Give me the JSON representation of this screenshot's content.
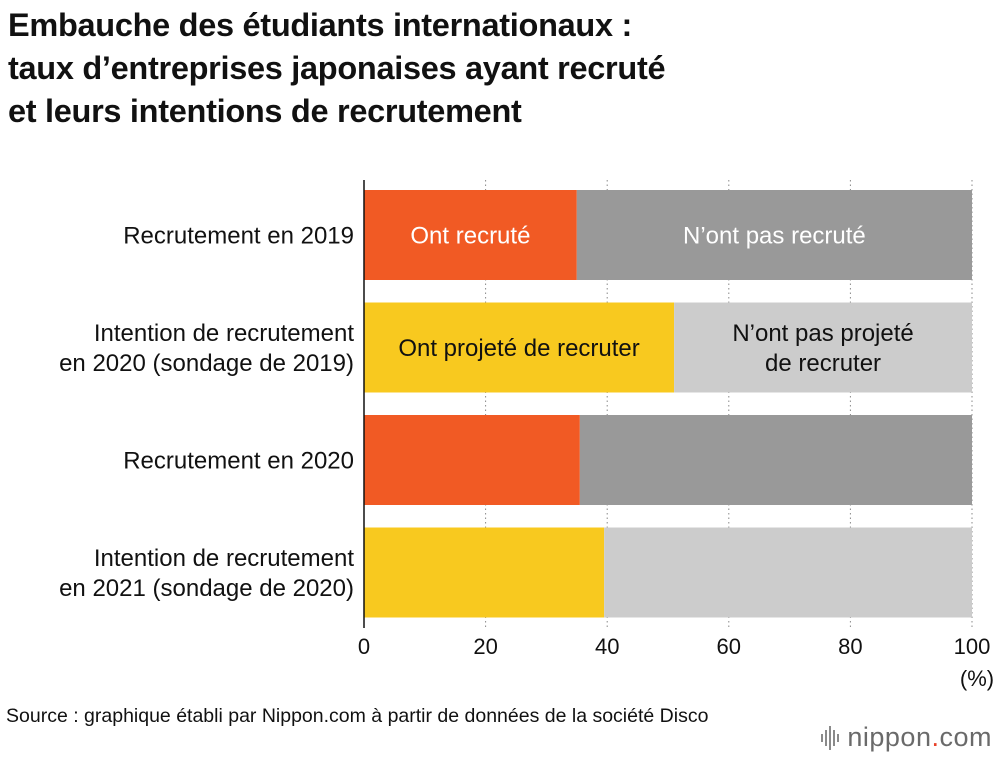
{
  "title_lines": [
    "Embauche des étudiants internationaux :",
    "taux d’entreprises japonaises ayant recruté",
    "et leurs intentions de recrutement"
  ],
  "source": "Source : graphique établi par Nippon.com à partir de données de la société Disco",
  "logo": {
    "part1": "nippon",
    "dot": ".",
    "part2": "com"
  },
  "colors": {
    "recruited": "#f15a24",
    "not_recruited": "#999999",
    "planned": "#f8c91f",
    "not_planned": "#cccccc",
    "grid": "#888888",
    "axis": "#111111"
  },
  "chart_data": {
    "type": "bar",
    "orientation": "horizontal",
    "stacked": true,
    "categories": [
      [
        "Recrutement en 2019"
      ],
      [
        "Intention de recrutement",
        "en 2020 (sondage de 2019)"
      ],
      [
        "Recrutement en 2020"
      ],
      [
        "Intention de recrutement",
        "en 2021 (sondage de 2020)"
      ]
    ],
    "series": [
      {
        "values": [
          35,
          51,
          35.5,
          39.5
        ],
        "colors": [
          "recruited",
          "planned",
          "recruited",
          "planned"
        ]
      },
      {
        "values": [
          65,
          49,
          64.5,
          60.5
        ],
        "colors": [
          "not_recruited",
          "not_planned",
          "not_recruited",
          "not_planned"
        ]
      }
    ],
    "segment_labels": [
      [
        [
          "Ont recruté"
        ],
        [
          "N’ont pas recruté"
        ]
      ],
      [
        [
          "Ont projeté de recruter"
        ],
        [
          "N’ont pas projeté",
          "de recruter"
        ]
      ],
      [
        [],
        []
      ],
      [
        [],
        []
      ]
    ],
    "xlim": [
      0,
      100
    ],
    "xticks": [
      0,
      20,
      40,
      60,
      80,
      100
    ],
    "xunit": "(%)",
    "grid": true
  }
}
